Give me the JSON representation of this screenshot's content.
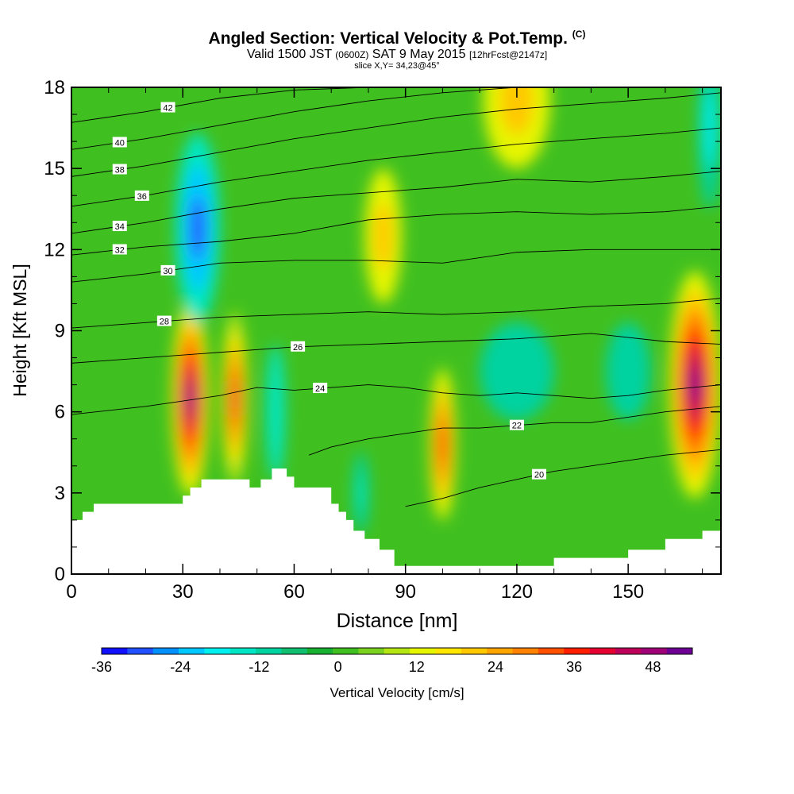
{
  "header": {
    "title": "Angled Section: Vertical Velocity & Pot.Temp.",
    "title_mark": "(C)",
    "valid_prefix": "Valid 1500 JST",
    "valid_utc": "(0600Z)",
    "valid_date": "SAT 9 May 2015",
    "forecast": "[12hrFcst@2147z]",
    "slice": "slice X,Y= 34,23@45°"
  },
  "chart_data": {
    "type": "heatmap",
    "xlabel": "Distance [nm]",
    "ylabel": "Height [Kft MSL]",
    "xlim": [
      0,
      175
    ],
    "ylim": [
      0,
      18
    ],
    "x_ticks": [
      0,
      30,
      60,
      90,
      120,
      150
    ],
    "y_ticks": [
      0,
      3,
      6,
      9,
      12,
      15,
      18
    ],
    "colorbar": {
      "label": "Vertical Velocity [cm/s]",
      "ticks": [
        -36,
        -24,
        -12,
        0,
        12,
        24,
        36,
        48
      ],
      "min": -36,
      "max": 54,
      "step": 4,
      "colors": [
        "#1010ff",
        "#2050ff",
        "#0090ff",
        "#00c8ff",
        "#00f0f0",
        "#00e6c4",
        "#00d2a0",
        "#10c070",
        "#18b030",
        "#40c020",
        "#7ad21e",
        "#b4e614",
        "#e6f500",
        "#ffe600",
        "#ffc800",
        "#ffa500",
        "#ff8200",
        "#ff5000",
        "#ff1e00",
        "#e60032",
        "#be005a",
        "#a00078",
        "#6e0096"
      ]
    },
    "velocity_features": [
      {
        "x": 32,
        "y": 6.5,
        "value": 54,
        "rx": 5,
        "ry": 3.6
      },
      {
        "x": 44,
        "y": 6.5,
        "value": 40,
        "rx": 3.5,
        "ry": 3.2
      },
      {
        "x": 100,
        "y": 4.8,
        "value": 38,
        "rx": 3.5,
        "ry": 2.8
      },
      {
        "x": 168,
        "y": 7.0,
        "value": 54,
        "rx": 7,
        "ry": 4.2
      },
      {
        "x": 120,
        "y": 17.5,
        "value": 22,
        "rx": 9,
        "ry": 2.5
      },
      {
        "x": 84,
        "y": 12.5,
        "value": 22,
        "rx": 5,
        "ry": 2.5
      },
      {
        "x": 34,
        "y": 12.8,
        "value": -30,
        "rx": 6,
        "ry": 3.5
      },
      {
        "x": 172,
        "y": 16.5,
        "value": -20,
        "rx": 3,
        "ry": 3
      },
      {
        "x": 120,
        "y": 7.5,
        "value": -12,
        "rx": 10,
        "ry": 1.8
      },
      {
        "x": 150,
        "y": 7.5,
        "value": -12,
        "rx": 6,
        "ry": 1.8
      },
      {
        "x": 55,
        "y": 6.0,
        "value": -14,
        "rx": 2.5,
        "ry": 2.5
      },
      {
        "x": 78,
        "y": 3.0,
        "value": -16,
        "rx": 2,
        "ry": 1.5
      }
    ],
    "terrain": {
      "x": [
        0,
        3,
        6,
        10,
        28,
        30,
        32,
        35,
        48,
        51,
        54,
        58,
        60,
        62,
        70,
        72,
        74,
        76,
        79,
        83,
        87,
        110,
        130,
        150,
        160,
        170,
        175
      ],
      "height_kft": [
        2.0,
        2.3,
        2.6,
        2.6,
        2.6,
        2.9,
        3.2,
        3.5,
        3.2,
        3.5,
        3.9,
        3.6,
        3.2,
        3.2,
        2.6,
        2.3,
        2.0,
        1.6,
        1.3,
        0.9,
        0.3,
        0.3,
        0.6,
        0.9,
        1.3,
        1.6,
        1.6
      ]
    },
    "theta_contours": [
      {
        "value": 20,
        "x": [
          90,
          100,
          110,
          120,
          130,
          140,
          150,
          160,
          175
        ],
        "y": [
          2.5,
          2.8,
          3.2,
          3.5,
          3.8,
          4.0,
          4.2,
          4.4,
          4.6
        ],
        "label_x": 126
      },
      {
        "value": 22,
        "x": [
          64,
          70,
          80,
          90,
          100,
          110,
          120,
          130,
          140,
          150,
          160,
          175
        ],
        "y": [
          4.4,
          4.7,
          5.0,
          5.2,
          5.4,
          5.4,
          5.5,
          5.6,
          5.6,
          5.8,
          6.0,
          6.2
        ],
        "label_x": 120
      },
      {
        "value": 24,
        "x": [
          0,
          20,
          40,
          50,
          60,
          70,
          80,
          90,
          100,
          110,
          120,
          130,
          140,
          150,
          160,
          175
        ],
        "y": [
          5.9,
          6.2,
          6.6,
          6.9,
          6.8,
          6.9,
          7.0,
          6.9,
          6.7,
          6.6,
          6.7,
          6.6,
          6.5,
          6.6,
          6.8,
          7.0
        ],
        "label_x": 67
      },
      {
        "value": 26,
        "x": [
          0,
          20,
          40,
          60,
          80,
          100,
          120,
          140,
          160,
          175
        ],
        "y": [
          7.8,
          8.0,
          8.2,
          8.4,
          8.5,
          8.6,
          8.7,
          8.9,
          8.6,
          8.5
        ],
        "label_x": 61
      },
      {
        "value": 28,
        "x": [
          0,
          20,
          40,
          60,
          80,
          100,
          120,
          140,
          160,
          175
        ],
        "y": [
          9.1,
          9.3,
          9.5,
          9.6,
          9.7,
          9.6,
          9.7,
          9.9,
          10.0,
          10.2
        ],
        "label_x": 25
      },
      {
        "value": 30,
        "x": [
          0,
          20,
          40,
          60,
          80,
          100,
          120,
          140,
          160,
          175
        ],
        "y": [
          10.8,
          11.1,
          11.5,
          11.6,
          11.6,
          11.5,
          11.9,
          12.0,
          12.0,
          12.0
        ],
        "label_x": 26
      },
      {
        "value": 32,
        "x": [
          0,
          20,
          40,
          60,
          80,
          100,
          120,
          140,
          160,
          175
        ],
        "y": [
          11.8,
          12.1,
          12.3,
          12.6,
          13.1,
          13.3,
          13.4,
          13.3,
          13.4,
          13.6
        ],
        "label_x": 13
      },
      {
        "value": 34,
        "x": [
          0,
          20,
          40,
          60,
          80,
          100,
          120,
          140,
          160,
          175
        ],
        "y": [
          12.6,
          13.0,
          13.5,
          13.9,
          14.1,
          14.3,
          14.6,
          14.5,
          14.7,
          14.9
        ],
        "label_x": 13
      },
      {
        "value": 36,
        "x": [
          0,
          20,
          40,
          60,
          80,
          100,
          120,
          140,
          160,
          175
        ],
        "y": [
          13.6,
          14.0,
          14.5,
          14.9,
          15.3,
          15.6,
          15.9,
          16.1,
          16.3,
          16.5
        ],
        "label_x": 19
      },
      {
        "value": 38,
        "x": [
          0,
          20,
          40,
          60,
          80,
          100,
          120,
          140,
          160,
          175
        ],
        "y": [
          14.7,
          15.1,
          15.6,
          16.1,
          16.5,
          16.9,
          17.2,
          17.4,
          17.6,
          17.8
        ],
        "label_x": 13
      },
      {
        "value": 40,
        "x": [
          0,
          20,
          40,
          60,
          80,
          100,
          120,
          140
        ],
        "y": [
          15.7,
          16.1,
          16.6,
          17.1,
          17.5,
          17.8,
          18.0,
          18.0
        ],
        "label_x": 13
      },
      {
        "value": 42,
        "x": [
          0,
          20,
          40,
          60,
          80
        ],
        "y": [
          16.7,
          17.1,
          17.6,
          17.9,
          18.0
        ],
        "label_x": 26
      }
    ]
  }
}
